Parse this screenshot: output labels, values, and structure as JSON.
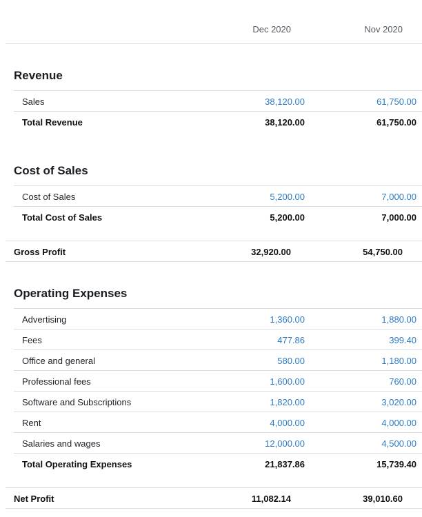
{
  "header": {
    "col1": "Dec 2020",
    "col2": "Nov 2020"
  },
  "revenue": {
    "title": "Revenue",
    "rows": [
      {
        "label": "Sales",
        "dec": "38,120.00",
        "nov": "61,750.00"
      }
    ],
    "total": {
      "label": "Total Revenue",
      "dec": "38,120.00",
      "nov": "61,750.00"
    }
  },
  "cost_of_sales": {
    "title": "Cost of Sales",
    "rows": [
      {
        "label": "Cost of Sales",
        "dec": "5,200.00",
        "nov": "7,000.00"
      }
    ],
    "total": {
      "label": "Total Cost of Sales",
      "dec": "5,200.00",
      "nov": "7,000.00"
    }
  },
  "gross_profit": {
    "label": "Gross Profit",
    "dec": "32,920.00",
    "nov": "54,750.00"
  },
  "operating_expenses": {
    "title": "Operating Expenses",
    "rows": [
      {
        "label": "Advertising",
        "dec": "1,360.00",
        "nov": "1,880.00"
      },
      {
        "label": "Fees",
        "dec": "477.86",
        "nov": "399.40"
      },
      {
        "label": "Office and general",
        "dec": "580.00",
        "nov": "1,180.00"
      },
      {
        "label": "Professional fees",
        "dec": "1,600.00",
        "nov": "760.00"
      },
      {
        "label": "Software and Subscriptions",
        "dec": "1,820.00",
        "nov": "3,020.00"
      },
      {
        "label": "Rent",
        "dec": "4,000.00",
        "nov": "4,000.00"
      },
      {
        "label": "Salaries and wages",
        "dec": "12,000.00",
        "nov": "4,500.00"
      }
    ],
    "total": {
      "label": "Total Operating Expenses",
      "dec": "21,837.86",
      "nov": "15,739.40"
    }
  },
  "net_profit": {
    "label": "Net Profit",
    "dec": "11,082.14",
    "nov": "39,010.60"
  }
}
